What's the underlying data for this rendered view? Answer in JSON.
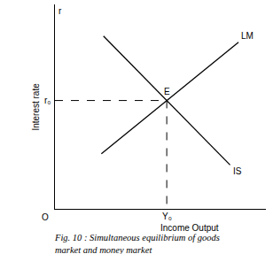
{
  "chart_data": {
    "type": "line",
    "xlabel": "Income Output",
    "ylabel": "Interest rate",
    "y_axis_symbol": "r",
    "origin_label": "O",
    "xlim": [
      0,
      10
    ],
    "ylim": [
      0,
      10
    ],
    "tick_labels": false,
    "grid": false,
    "series": [
      {
        "name": "LM",
        "color": "#000000",
        "line_style": "solid",
        "x": [
          2.2,
          8.7
        ],
        "values": [
          2.7,
          8.15
        ]
      },
      {
        "name": "IS",
        "color": "#000000",
        "line_style": "solid",
        "x": [
          2.3,
          8.3
        ],
        "values": [
          8.45,
          2.15
        ]
      }
    ],
    "equilibrium": {
      "label": "E",
      "x": 5.3,
      "y": 5.3,
      "x_label": "Y₀",
      "y_label": "r₀",
      "line_style": "dashed",
      "color": "#000000"
    },
    "caption": [
      "Fig. 10 : Simultaneous equilibrium of goods",
      "market and money market"
    ]
  }
}
